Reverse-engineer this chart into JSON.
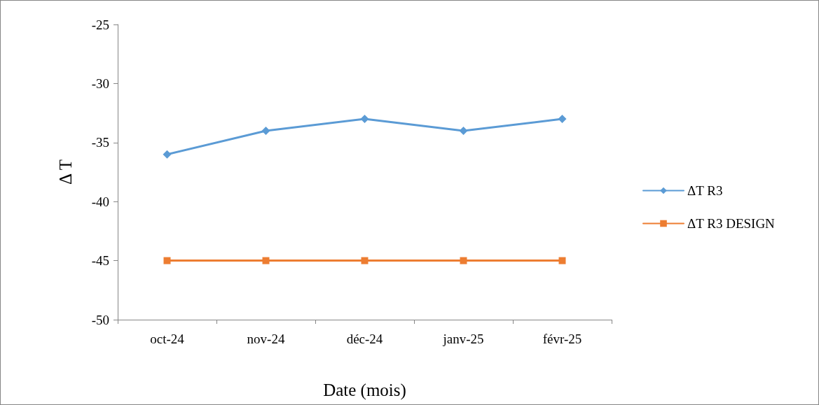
{
  "chart_data": {
    "type": "line",
    "ylabel": "Δ T",
    "xlabel": "Date (mois)",
    "categories": [
      "oct-24",
      "nov-24",
      "déc-24",
      "janv-25",
      "févr-25"
    ],
    "series": [
      {
        "name": "ΔT R3",
        "color": "#5b9bd5",
        "marker": "diamond",
        "values": [
          -36,
          -34,
          -33,
          -34,
          -33
        ]
      },
      {
        "name": "ΔT R3 DESIGN",
        "color": "#ed7d31",
        "marker": "square",
        "values": [
          -45,
          -45,
          -45,
          -45,
          -45
        ]
      }
    ],
    "ylim": [
      -50,
      -25
    ],
    "yticks": [
      -50,
      -45,
      -40,
      -35,
      -30,
      -25
    ],
    "grid": false,
    "legend": "right",
    "line_style": "solid"
  }
}
